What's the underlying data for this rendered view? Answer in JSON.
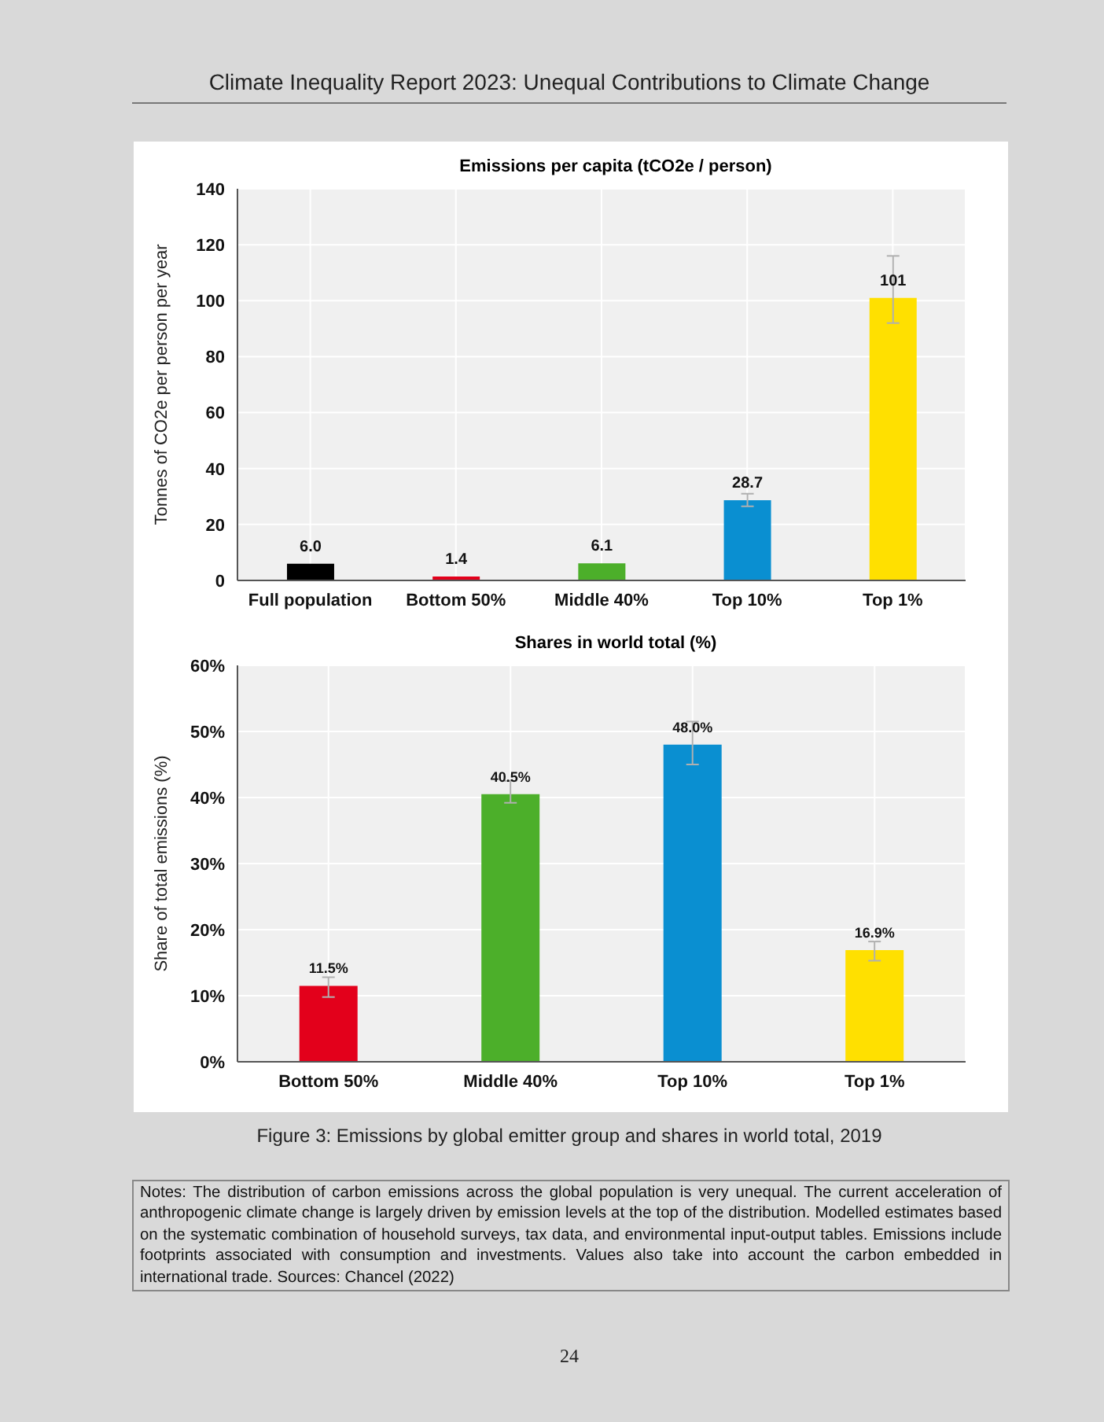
{
  "chart_data": [
    {
      "type": "bar",
      "title": "Emissions per capita (tCO2e / person)",
      "ylabel": "Tonnes of CO2e per person per year",
      "annotations": [
        "Climate Inequality Report 2023: Unequal Contributions to Climate Change"
      ],
      "categories": [
        "Full population",
        "Bottom 50%",
        "Middle 40%",
        "Top 10%",
        "Top 1%"
      ],
      "values": [
        6.0,
        1.4,
        6.1,
        28.7,
        101
      ],
      "colors": [
        "#000000",
        "#e3001b",
        "#4caf2a",
        "#0a8fd1",
        "#ffe000"
      ],
      "errors": [
        null,
        null,
        null,
        [
          26.5,
          31
        ],
        [
          92,
          116
        ]
      ],
      "value_labels": [
        "6.0",
        "1.4",
        "6.1",
        "28.7",
        "101"
      ],
      "ylim": [
        0,
        140
      ],
      "yticks": [
        0,
        20,
        40,
        60,
        80,
        100,
        120,
        140
      ],
      "grid": true
    },
    {
      "type": "bar",
      "title": "Shares in world total (%)",
      "ylabel": "Share of total emissions (%)",
      "annotations": [
        "Figure 3: Emissions by global emitter group and shares in world total, 2019",
        "Notes: The distribution of carbon emissions across the global population is very unequal. The current acceleration of anthropogenic climate change is largely driven by emission levels at the top of the distribution. Modelled estimates based on the systematic combination of household surveys, tax data, and environmental input-output tables. Emissions include footprints associated with consumption and investments. Values also take into account the carbon embedded in international trade. Sources: Chancel (2022)",
        "24"
      ],
      "categories": [
        "Bottom 50%",
        "Middle 40%",
        "Top 10%",
        "Top 1%"
      ],
      "values": [
        11.5,
        40.5,
        48.0,
        16.9
      ],
      "colors": [
        "#e3001b",
        "#4caf2a",
        "#0a8fd1",
        "#ffe000"
      ],
      "errors": [
        [
          9.8,
          12.8
        ],
        [
          39.2,
          42.5
        ],
        [
          45,
          51.5
        ],
        [
          15.3,
          18.2
        ]
      ],
      "value_labels": [
        "11.5%",
        "40.5%",
        "48.0%",
        "16.9%"
      ],
      "ylim": [
        0,
        60
      ],
      "yticks": [
        {
          "value": 0,
          "label": "0%"
        },
        {
          "value": 10,
          "label": "10%"
        },
        {
          "value": 20,
          "label": "20%"
        },
        {
          "value": 30,
          "label": "30%"
        },
        {
          "value": 40,
          "label": "40%"
        },
        {
          "value": 50,
          "label": "50%"
        },
        {
          "value": 60,
          "label": "60%"
        }
      ],
      "grid": true
    }
  ]
}
